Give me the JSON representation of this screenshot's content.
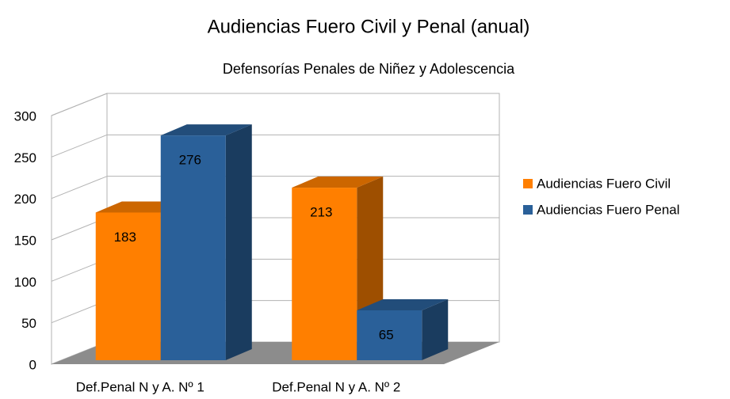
{
  "chart_data": {
    "type": "bar3d",
    "title": "Audiencias Fuero Civil y Penal (anual)",
    "subtitle": "Defensorías Penales de Niñez y Adolescencia",
    "categories": [
      "Def.Penal N y A. Nº 1",
      "Def.Penal N y A. Nº 2"
    ],
    "series": [
      {
        "name": "Audiencias Fuero Civil",
        "color": "#ff7f00",
        "values": [
          183,
          213
        ]
      },
      {
        "name": "Audiencias Fuero Penal",
        "color": "#2a6099",
        "values": [
          276,
          65
        ]
      }
    ],
    "ylim": [
      0,
      300
    ],
    "yticks": [
      0,
      50,
      100,
      150,
      200,
      250,
      300
    ],
    "grid": true,
    "legend": "right"
  }
}
